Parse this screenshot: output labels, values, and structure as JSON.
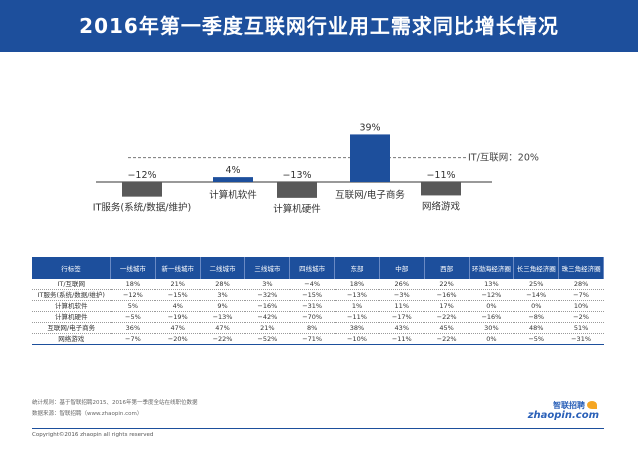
{
  "header": {
    "title": "2016年第一季度互联网行业用工需求同比增长情况"
  },
  "colors": {
    "header_bg": "#1d4f9c",
    "bar_gray": "#595959",
    "bar_blue": "#1d4f9c"
  },
  "chart_data": {
    "type": "bar",
    "categories": [
      "IT服务(系统/数据/维护)",
      "计算机软件",
      "计算机硬件",
      "互联网/电子商务",
      "网络游戏"
    ],
    "values": [
      -12,
      4,
      -13,
      39,
      -11
    ],
    "value_labels": [
      "−12%",
      "4%",
      "−13%",
      "39%",
      "−11%"
    ],
    "highlight": [
      false,
      true,
      false,
      true,
      false
    ],
    "reference_line": {
      "value": 20,
      "label": "IT/互联网：20%"
    }
  },
  "table": {
    "headers": [
      "行标签",
      "一线城市",
      "新一线城市",
      "二线城市",
      "三线城市",
      "四线城市",
      "东部",
      "中部",
      "西部",
      "环渤海经济圈",
      "长三角经济圈",
      "珠三角经济圈"
    ],
    "rows": [
      [
        "IT/互联网",
        "18%",
        "21%",
        "28%",
        "3%",
        "−4%",
        "18%",
        "26%",
        "22%",
        "13%",
        "25%",
        "28%"
      ],
      [
        "IT服务(系统/数据/维护)",
        "−12%",
        "−15%",
        "3%",
        "−32%",
        "−15%",
        "−13%",
        "−3%",
        "−16%",
        "−12%",
        "−14%",
        "−7%"
      ],
      [
        "计算机软件",
        "5%",
        "4%",
        "9%",
        "−16%",
        "−31%",
        "1%",
        "11%",
        "17%",
        "0%",
        "0%",
        "10%"
      ],
      [
        "计算机硬件",
        "−5%",
        "−19%",
        "−13%",
        "−42%",
        "−70%",
        "−11%",
        "−17%",
        "−22%",
        "−16%",
        "−8%",
        "−2%"
      ],
      [
        "互联网/电子商务",
        "36%",
        "47%",
        "47%",
        "21%",
        "8%",
        "38%",
        "43%",
        "45%",
        "30%",
        "48%",
        "51%"
      ],
      [
        "网络游戏",
        "−7%",
        "−20%",
        "−22%",
        "−52%",
        "−71%",
        "−10%",
        "−11%",
        "−22%",
        "0%",
        "−5%",
        "−31%"
      ]
    ]
  },
  "footer": {
    "note1": "统计规则：基于智联招聘2015、2016年第一季度全站在线职位数据",
    "note2": "数据来源：智联招聘（www.zhaopin.com）",
    "copyright": "Copyright©2016 zhaopin all rights reserved",
    "logo_cn": "智联招聘",
    "logo_en": "zhaopin.com"
  }
}
